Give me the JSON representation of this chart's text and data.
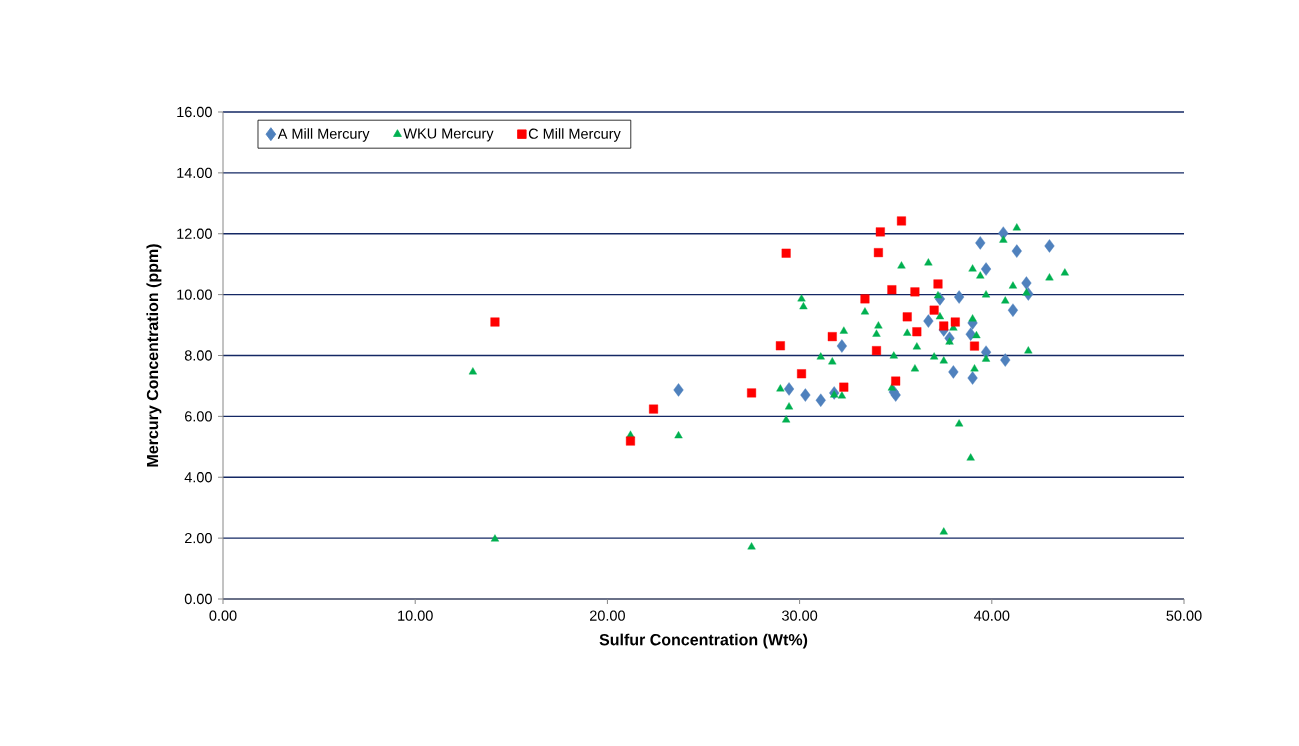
{
  "chart_data": {
    "type": "scatter",
    "xlabel": "Sulfur Concentration (Wt%)",
    "ylabel": "Mercury Concentration (ppm)",
    "xlim": [
      0,
      50
    ],
    "ylim": [
      0,
      16
    ],
    "xticks": [
      {
        "value": 0,
        "label": "0.00"
      },
      {
        "value": 10,
        "label": "10.00"
      },
      {
        "value": 20,
        "label": "20.00"
      },
      {
        "value": 30,
        "label": "30.00"
      },
      {
        "value": 40,
        "label": "40.00"
      },
      {
        "value": 50,
        "label": "50.00"
      }
    ],
    "yticks": [
      {
        "value": 0,
        "label": "0.00"
      },
      {
        "value": 2,
        "label": "2.00"
      },
      {
        "value": 4,
        "label": "4.00"
      },
      {
        "value": 6,
        "label": "6.00"
      },
      {
        "value": 8,
        "label": "8.00"
      },
      {
        "value": 10,
        "label": "10.00"
      },
      {
        "value": 12,
        "label": "12.00"
      },
      {
        "value": 14,
        "label": "14.00"
      },
      {
        "value": 16,
        "label": "16.00"
      }
    ],
    "grid": "y",
    "legend": "top left",
    "series": [
      {
        "name": "A Mill Mercury",
        "color": "#4f81bd",
        "marker": "diamond",
        "x": [
          23.7,
          29.45,
          30.3,
          31.1,
          31.8,
          32.2,
          35.0,
          40.6,
          39.4,
          41.3,
          43.0,
          39.7,
          41.8,
          41.9,
          38.3,
          37.3,
          41.1,
          36.7,
          39.0,
          37.5,
          38.9,
          37.8,
          39.7,
          40.7,
          38.0,
          39.0,
          34.9
        ],
        "values": [
          6.87,
          6.9,
          6.7,
          6.53,
          6.77,
          8.31,
          6.7,
          12.02,
          11.7,
          11.43,
          11.6,
          10.84,
          10.38,
          10.02,
          9.92,
          9.86,
          9.49,
          9.13,
          9.07,
          8.84,
          8.7,
          8.57,
          8.11,
          7.85,
          7.46,
          7.26,
          6.8
        ]
      },
      {
        "name": "WKU Mercury",
        "color": "#00b050",
        "marker": "triangle",
        "x": [
          13.0,
          14.15,
          21.2,
          23.7,
          27.5,
          30.1,
          30.2,
          33.4,
          34.1,
          34.0,
          31.1,
          31.7,
          32.3,
          29.0,
          29.45,
          29.3,
          31.8,
          32.2,
          34.9,
          34.8,
          35.3,
          36.7,
          41.3,
          40.6,
          39.0,
          39.4,
          41.1,
          43.0,
          43.8,
          37.2,
          39.7,
          40.7,
          41.8,
          35.6,
          37.3,
          38.0,
          39.0,
          39.2,
          36.1,
          37.8,
          37.0,
          37.5,
          36.0,
          39.1,
          39.7,
          41.9,
          38.3,
          38.9,
          37.5
        ],
        "values": [
          7.46,
          1.97,
          5.38,
          5.36,
          1.71,
          9.86,
          9.6,
          9.43,
          8.97,
          8.7,
          7.95,
          7.79,
          8.8,
          6.9,
          6.31,
          5.88,
          6.7,
          6.67,
          7.98,
          6.93,
          10.94,
          11.04,
          12.19,
          11.79,
          10.84,
          10.61,
          10.28,
          10.55,
          10.71,
          9.96,
          9.99,
          9.79,
          10.05,
          8.73,
          9.27,
          8.9,
          9.2,
          8.65,
          8.28,
          8.44,
          7.95,
          7.82,
          7.56,
          7.56,
          7.88,
          8.15,
          5.75,
          4.63,
          2.2
        ]
      },
      {
        "name": "C Mill Mercury",
        "color": "#ff0000",
        "marker": "square",
        "x": [
          14.15,
          22.4,
          21.2,
          34.2,
          29.3,
          34.1,
          34.8,
          33.4,
          31.7,
          29.0,
          34.0,
          30.1,
          32.3,
          27.5,
          35.0,
          35.3,
          36.0,
          37.2,
          37.0,
          35.6,
          37.5,
          36.1,
          38.1,
          39.1
        ],
        "values": [
          9.1,
          6.24,
          5.19,
          12.06,
          11.36,
          11.38,
          10.16,
          9.86,
          8.62,
          8.32,
          8.16,
          7.4,
          6.96,
          6.77,
          7.16,
          12.42,
          10.09,
          10.35,
          9.49,
          9.27,
          8.97,
          8.78,
          9.1,
          8.31
        ]
      }
    ]
  }
}
